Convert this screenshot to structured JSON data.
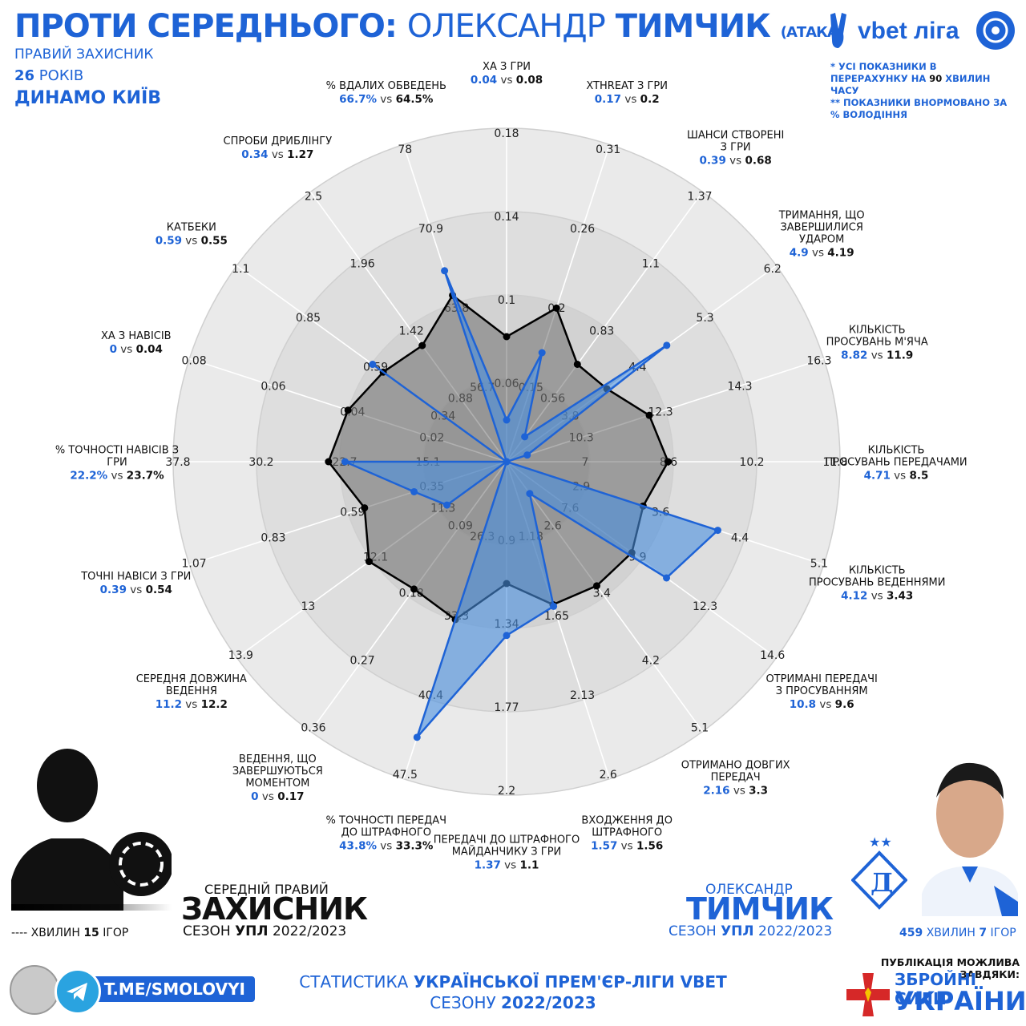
{
  "header": {
    "title_prefix": "ПРОТИ СЕРЕДНЬОГО:",
    "title_name_first": "ОЛЕКСАНДР",
    "title_name_last": "ТИМЧИК",
    "title_note": "(АТАКА)",
    "position": "ПРАВИЙ ЗАХИСНИК",
    "age_number": "26",
    "age_word": "РОКІВ",
    "club": "ДИНАМО КИЇВ"
  },
  "brand": {
    "logo_text": "vbet ліга"
  },
  "notes": {
    "line1_pre": "* УСІ ПОКАЗНИКИ В ПЕРЕРАХУНКУ НА ",
    "line1_bold": "90",
    "line1_post": " ХВИЛИН ЧАСУ",
    "line2": "** ПОКАЗНИКИ ВНОРМОВАНО ЗА % ВОЛОДІННЯ"
  },
  "legend_left": {
    "line1": "СЕРЕДНІЙ ПРАВИЙ",
    "line2": "ЗАХИСНИК",
    "line3_pre": "СЕЗОН ",
    "line3_bold": "УПЛ",
    "line3_post": " 2022/2023",
    "minutes": "---- ХВИЛИН",
    "games_num": "15",
    "games_word": "ІГОР"
  },
  "legend_right": {
    "line1": "ОЛЕКСАНДР",
    "line2": "ТИМЧИК",
    "line3_pre": "СЕЗОН ",
    "line3_bold": "УПЛ",
    "line3_post": " 2022/2023",
    "minutes_num": "459",
    "minutes_word": "ХВИЛИН",
    "games_num": "7",
    "games_word": "ІГОР"
  },
  "footer": {
    "line1_pre": "СТАТИСТИКА ",
    "line1_bold": "УКРАЇНСЬКОЇ ПРЕМ'ЄР-ЛІГИ VBET",
    "line2_pre": "СЕЗОНУ ",
    "line2_bold": "2022/2023",
    "telegram": "T.ME/SMOLOVYI",
    "sponsor_intro": "ПУБЛІКАЦІЯ МОЖЛИВА ЗАВДЯКИ:",
    "sponsor_line1": "ЗБРОЙНІ СИЛИ",
    "sponsor_line2": "УКРАЇНИ"
  },
  "colors": {
    "accent": "#1e63d6",
    "player_fill": "#4a8fe0",
    "avg_fill": "#7d7d7d"
  },
  "chart_data": {
    "type": "radar",
    "series": [
      {
        "name": "ОЛЕКСАНДР ТИМЧИК",
        "color": "#1e63d6"
      },
      {
        "name": "СЕРЕДНІЙ ПРАВИЙ ЗАХИСНИК",
        "color": "#000000"
      }
    ],
    "rings": 5,
    "axes": [
      {
        "label": [
          "ХА З ГРИ"
        ],
        "player": "0.04",
        "avg": "0.08",
        "suffix": "",
        "ticks": [
          "0.06",
          "0.1",
          "0.14",
          "0.18"
        ],
        "pv": 0.04,
        "av": 0.08
      },
      {
        "label": [
          "XTHREAT З ГРИ"
        ],
        "player": "0.17",
        "avg": "0.2",
        "suffix": "",
        "ticks": [
          "0.15",
          "0.2",
          "0.26",
          "0.31"
        ],
        "pv": 0.17,
        "av": 0.2
      },
      {
        "label": [
          "ШАНСИ СТВОРЕНІ",
          "З ГРИ"
        ],
        "player": "0.39",
        "avg": "0.68",
        "suffix": "",
        "ticks": [
          "0.56",
          "0.83",
          "1.1",
          "1.37"
        ],
        "pv": 0.39,
        "av": 0.68
      },
      {
        "label": [
          "ТРИМАННЯ, ЩО",
          "ЗАВЕРШИЛИСЯ",
          "УДАРОМ"
        ],
        "player": "4.9",
        "avg": "4.19",
        "suffix": "",
        "ticks": [
          "3.8",
          "4.4",
          "5.3",
          "6.2"
        ],
        "pv": 4.9,
        "av": 4.19
      },
      {
        "label": [
          "КІЛЬКІСТЬ",
          "ПРОСУВАНЬ М'ЯЧА"
        ],
        "player": "8.82",
        "avg": "11.9",
        "suffix": "",
        "ticks": [
          "10.3",
          "12.3",
          "14.3",
          "16.3"
        ],
        "pv": 8.82,
        "av": 11.9
      },
      {
        "label": [
          "КІЛЬКІСТЬ",
          "ПРОСУВАНЬ ПЕРЕДАЧАМИ"
        ],
        "player": "4.71",
        "avg": "8.5",
        "suffix": "",
        "ticks": [
          "7",
          "8.6",
          "10.2",
          "11.8"
        ],
        "pv": 4.71,
        "av": 8.5
      },
      {
        "label": [
          "КІЛЬКІСТЬ",
          "ПРОСУВАНЬ ВЕДЕННЯМИ"
        ],
        "player": "4.12",
        "avg": "3.43",
        "suffix": "",
        "ticks": [
          "2.9",
          "3.6",
          "4.4",
          "5.1"
        ],
        "pv": 4.12,
        "av": 3.43
      },
      {
        "label": [
          "ОТРИМАНІ ПЕРЕДАЧІ",
          "З ПРОСУВАННЯМ"
        ],
        "player": "10.8",
        "avg": "9.6",
        "suffix": "",
        "ticks": [
          "7.6",
          "9.9",
          "12.3",
          "14.6"
        ],
        "pv": 10.8,
        "av": 9.6
      },
      {
        "label": [
          "ОТРИМАНО ДОВГИХ",
          "ПЕРЕДАЧ"
        ],
        "player": "2.16",
        "avg": "3.3",
        "suffix": "",
        "ticks": [
          "2.6",
          "3.4",
          "4.2",
          "5.1"
        ],
        "pv": 2.16,
        "av": 3.3
      },
      {
        "label": [
          "ВХОДЖЕННЯ ДО",
          "ШТРАФНОГО"
        ],
        "player": "1.57",
        "avg": "1.56",
        "suffix": "",
        "ticks": [
          "1.18",
          "1.65",
          "2.13",
          "2.6"
        ],
        "pv": 1.57,
        "av": 1.56
      },
      {
        "label": [
          "ПЕРЕДАЧІ ДО ШТРАФНОГО",
          "МАЙДАНЧИКУ З ГРИ"
        ],
        "player": "1.37",
        "avg": "1.1",
        "suffix": "",
        "ticks": [
          "0.9",
          "1.34",
          "1.77",
          "2.2"
        ],
        "pv": 1.37,
        "av": 1.1
      },
      {
        "label": [
          "% ТОЧНОСТІ ПЕРЕДАЧ",
          "ДО ШТРАФНОГО"
        ],
        "player": "43.8",
        "avg": "33.3",
        "suffix": "%",
        "ticks": [
          "26.3",
          "33.3",
          "40.4",
          "47.5"
        ],
        "pv": 43.8,
        "av": 33.3
      },
      {
        "label": [
          "ВЕДЕННЯ, ЩО",
          "ЗАВЕРШУЮТЬСЯ",
          "МОМЕНТОМ"
        ],
        "player": "0",
        "avg": "0.17",
        "suffix": "",
        "ticks": [
          "0.09",
          "0.18",
          "0.27",
          "0.36"
        ],
        "pv": 0,
        "av": 0.17
      },
      {
        "label": [
          "СЕРЕДНЯ ДОВЖИНА",
          "ВЕДЕННЯ"
        ],
        "player": "11.2",
        "avg": "12.2",
        "suffix": "",
        "ticks": [
          "11.3",
          "12.1",
          "13",
          "13.9"
        ],
        "pv": 11.2,
        "av": 12.2
      },
      {
        "label": [
          "ТОЧНІ НАВІСИ З ГРИ"
        ],
        "player": "0.39",
        "avg": "0.54",
        "suffix": "",
        "ticks": [
          "0.35",
          "0.59",
          "0.83",
          "1.07"
        ],
        "pv": 0.39,
        "av": 0.54
      },
      {
        "label": [
          "% ТОЧНОСТІ НАВІСІВ З",
          "ГРИ"
        ],
        "player": "22.2",
        "avg": "23.7",
        "suffix": "%",
        "ticks": [
          "15.1",
          "22.7",
          "30.2",
          "37.8"
        ],
        "pv": 22.2,
        "av": 23.7
      },
      {
        "label": [
          "ХА З НАВІСІВ"
        ],
        "player": "0",
        "avg": "0.04",
        "suffix": "",
        "ticks": [
          "0.02",
          "0.04",
          "0.06",
          "0.08"
        ],
        "pv": 0,
        "av": 0.04
      },
      {
        "label": [
          "КАТБЕКИ"
        ],
        "player": "0.59",
        "avg": "0.55",
        "suffix": "",
        "ticks": [
          "0.34",
          "0.59",
          "0.85",
          "1.1"
        ],
        "pv": 0.59,
        "av": 0.55
      },
      {
        "label": [
          "СПРОБИ ДРИБЛІНГУ"
        ],
        "player": "0.34",
        "avg": "1.27",
        "suffix": "",
        "ticks": [
          "0.88",
          "1.42",
          "1.96",
          "2.5"
        ],
        "pv": 0.34,
        "av": 1.27
      },
      {
        "label": [
          "% ВДАЛИХ ОБВЕДЕНЬ"
        ],
        "player": "66.7",
        "avg": "64.5",
        "suffix": "%",
        "ticks": [
          "56.7",
          "63.8",
          "70.9",
          "78"
        ],
        "pv": 66.7,
        "av": 64.5
      }
    ]
  }
}
